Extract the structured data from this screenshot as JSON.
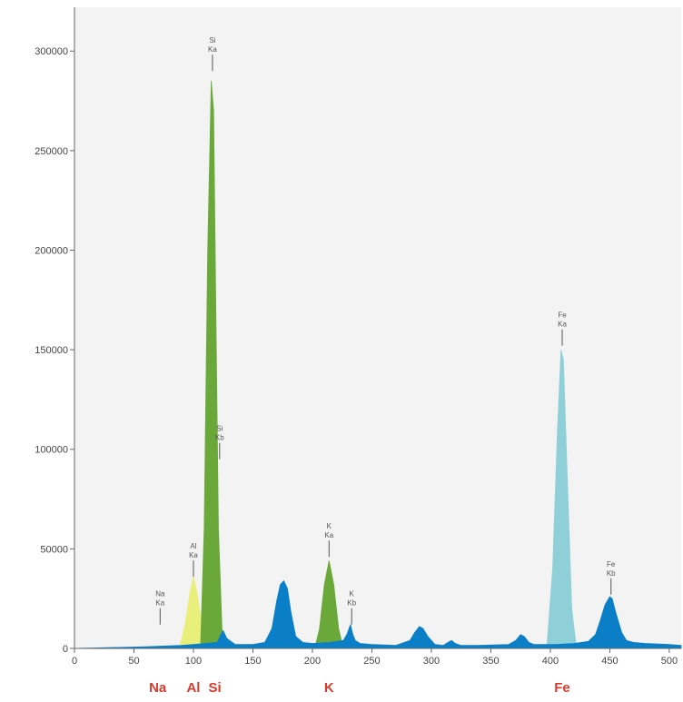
{
  "chart_data": {
    "type": "area",
    "title": "",
    "xlabel": "",
    "ylabel": "",
    "xlim": [
      0,
      510
    ],
    "ylim": [
      0,
      322000
    ],
    "x_ticks": [
      0,
      50,
      100,
      150,
      200,
      250,
      300,
      350,
      400,
      450,
      500
    ],
    "x_tick_labels": [
      "0",
      "50",
      "100",
      "150",
      "200",
      "250",
      "300",
      "350",
      "400",
      "450",
      "500"
    ],
    "y_ticks": [
      0,
      50000,
      100000,
      150000,
      200000,
      250000,
      300000
    ],
    "y_tick_labels": [
      "0",
      "50000",
      "100000",
      "150000",
      "200000",
      "250000",
      "300000"
    ],
    "background_color": "#f3f3f3",
    "grid": false,
    "series": [
      {
        "name": "Al",
        "color": "#e8ef7a",
        "x": [
          88,
          93,
          97,
          100,
          103,
          107,
          111
        ],
        "y": [
          0,
          12000,
          28000,
          36000,
          28000,
          12000,
          0
        ]
      },
      {
        "name": "Si",
        "color": "#6aa83a",
        "x": [
          106,
          109,
          112,
          115,
          117,
          119,
          121,
          124,
          126
        ],
        "y": [
          0,
          60000,
          200000,
          285000,
          270000,
          160000,
          60000,
          10000,
          0
        ]
      },
      {
        "name": "K",
        "color": "#6aa83a",
        "x": [
          202,
          206,
          210,
          214,
          218,
          222,
          226
        ],
        "y": [
          0,
          10000,
          32000,
          44000,
          32000,
          10000,
          0
        ]
      },
      {
        "name": "Fe",
        "color": "#8fd0d8",
        "x": [
          397,
          402,
          406,
          409,
          411,
          414,
          418,
          422
        ],
        "y": [
          0,
          40000,
          110000,
          150000,
          145000,
          90000,
          20000,
          0
        ]
      },
      {
        "name": "",
        "color": "#0a7fc8",
        "x": [
          0,
          60,
          90,
          100,
          110,
          120,
          123,
          125,
          128,
          135,
          150,
          160,
          166,
          170,
          173,
          176,
          179,
          182,
          186,
          192,
          200,
          215,
          226,
          229,
          232,
          234,
          236,
          240,
          250,
          270,
          282,
          286,
          290,
          293,
          297,
          303,
          310,
          314,
          317,
          320,
          325,
          340,
          365,
          371,
          375,
          378,
          382,
          386,
          395,
          405,
          420,
          432,
          438,
          442,
          446,
          450,
          452,
          455,
          460,
          464,
          470,
          480,
          500,
          510
        ],
        "y": [
          0,
          800,
          1500,
          2000,
          2500,
          3000,
          7000,
          9000,
          5000,
          2000,
          2000,
          3000,
          10000,
          24000,
          32000,
          34000,
          30000,
          18000,
          6000,
          3000,
          2500,
          3000,
          4000,
          7000,
          12000,
          7000,
          4000,
          2500,
          2000,
          1500,
          4000,
          8000,
          11000,
          10000,
          6000,
          2000,
          1500,
          3000,
          4000,
          2500,
          1500,
          1500,
          2000,
          4000,
          7000,
          6000,
          3000,
          2000,
          2000,
          2000,
          2500,
          3500,
          7000,
          14000,
          22000,
          26000,
          25000,
          18000,
          8000,
          4000,
          3000,
          2500,
          2000,
          1500
        ]
      }
    ],
    "peak_markers": [
      {
        "id": "na-ka",
        "line1": "Na",
        "line2": "Ka",
        "x": 72,
        "y": 12000
      },
      {
        "id": "al-ka",
        "line1": "Al",
        "line2": "Ka",
        "x": 100,
        "y": 36000
      },
      {
        "id": "si-ka",
        "line1": "Si",
        "line2": "Ka",
        "x": 116,
        "y": 290000
      },
      {
        "id": "si-kb",
        "line1": "Si",
        "line2": "Kb",
        "x": 122,
        "y": 95000
      },
      {
        "id": "k-ka",
        "line1": "K",
        "line2": "Ka",
        "x": 214,
        "y": 46000
      },
      {
        "id": "k-kb",
        "line1": "K",
        "line2": "Kb",
        "x": 233,
        "y": 12000
      },
      {
        "id": "fe-ka",
        "line1": "Fe",
        "line2": "Ka",
        "x": 410,
        "y": 152000
      },
      {
        "id": "fe-kb",
        "line1": "Fe",
        "line2": "Kb",
        "x": 451,
        "y": 27000
      }
    ],
    "element_labels": [
      {
        "id": "na",
        "text": "Na",
        "x": 70
      },
      {
        "id": "al",
        "text": "Al",
        "x": 100
      },
      {
        "id": "si",
        "text": "Si",
        "x": 118
      },
      {
        "id": "k",
        "text": "K",
        "x": 214
      },
      {
        "id": "fe",
        "text": "Fe",
        "x": 410
      }
    ],
    "element_label_color": "#d63b2c"
  }
}
